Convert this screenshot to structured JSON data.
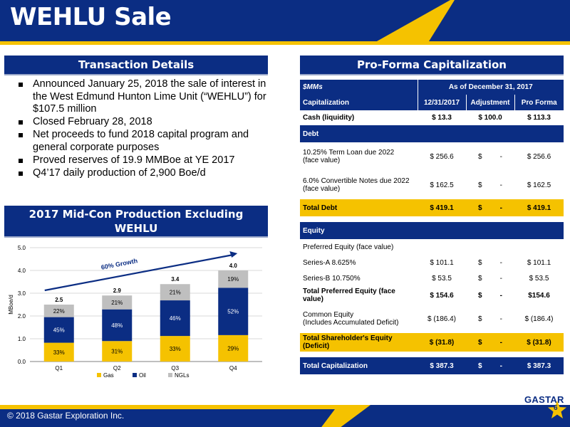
{
  "title": "WEHLU Sale",
  "transaction": {
    "header": "Transaction Details",
    "bullets": [
      "Announced January 25, 2018 the sale of interest in the West Edmund Hunton Lime Unit (“WEHLU”) for $107.5 million",
      "Closed February 28, 2018",
      "Net proceeds to fund 2018 capital program and general corporate purposes",
      "Proved reserves of 19.9 MMBoe at YE 2017",
      "Q4’17 daily production of 2,900 Boe/d"
    ]
  },
  "midcon": {
    "header_line1": "2017 Mid-Con Production Excluding",
    "header_line2": "WEHLU"
  },
  "chart_data": {
    "type": "bar",
    "stacked": true,
    "categories": [
      "Q1",
      "Q2",
      "Q3",
      "Q4"
    ],
    "totals": [
      "2.5",
      "2.9",
      "3.4",
      "4.0"
    ],
    "total_values": [
      2.5,
      2.9,
      3.4,
      4.0
    ],
    "series": [
      {
        "name": "Gas",
        "color": "#f5c200",
        "shares": [
          33,
          31,
          33,
          29
        ],
        "labels": [
          "33%",
          "31%",
          "33%",
          "29%"
        ]
      },
      {
        "name": "Oil",
        "color": "#0b2d83",
        "shares": [
          45,
          48,
          46,
          52
        ],
        "labels": [
          "45%",
          "48%",
          "46%",
          "52%"
        ]
      },
      {
        "name": "NGLs",
        "color": "#bfbfbf",
        "shares": [
          22,
          21,
          21,
          19
        ],
        "labels": [
          "22%",
          "21%",
          "21%",
          "19%"
        ]
      }
    ],
    "ylabel": "MBoe/d",
    "ylim": [
      0,
      5
    ],
    "yticks": [
      "0.0",
      "1.0",
      "2.0",
      "3.0",
      "4.0",
      "5.0"
    ],
    "ytick_values": [
      0,
      1,
      2,
      3,
      4,
      5
    ],
    "gridlines": true,
    "legend_position": "bottom",
    "annotation": "60% Growth"
  },
  "proforma": {
    "header": "Pro-Forma Capitalization",
    "units": "$MMs",
    "as_of": "As of December 31, 2017",
    "columns": [
      "Capitalization",
      "12/31/2017",
      "Adjustment",
      "Pro Forma"
    ],
    "cash": {
      "label": "Cash (liquidity)",
      "c1": "$ 13.3",
      "c2": "$ 100.0",
      "c3": "$ 113.3"
    },
    "debt_label": "Debt",
    "term_loan": {
      "line1": "10.25% Term Loan due 2022",
      "line2": "(face value)",
      "c1": "$ 256.6",
      "c2_sym": "$",
      "c2_val": "-",
      "c3": "$ 256.6"
    },
    "convertible": {
      "line1": "6.0% Convertible Notes due 2022",
      "line2": "(face value)",
      "c1": "$ 162.5",
      "c2_sym": "$",
      "c2_val": "-",
      "c3": "$ 162.5"
    },
    "total_debt": {
      "label": "Total Debt",
      "c1": "$ 419.1",
      "c2_sym": "$",
      "c2_val": "-",
      "c3": "$ 419.1"
    },
    "equity_label": "Equity",
    "preferred_label": "Preferred Equity (face value)",
    "series_a": {
      "label": "Series-A 8.625%",
      "c1": "$ 101.1",
      "c2_sym": "$",
      "c2_val": "-",
      "c3": "$ 101.1"
    },
    "series_b": {
      "label": "Series-B 10.750%",
      "c1": "$ 53.5",
      "c2_sym": "$",
      "c2_val": "-",
      "c3": "$ 53.5"
    },
    "total_preferred": {
      "label": "Total Preferred Equity (face value)",
      "c1": "$ 154.6",
      "c2_sym": "$",
      "c2_val": "-",
      "c3": "$154.6"
    },
    "common": {
      "line1": "Common Equity",
      "line2": "(Includes Accumulated Deficit)",
      "c1": "$ (186.4)",
      "c2_sym": "$",
      "c2_val": "-",
      "c3": "$ (186.4)"
    },
    "total_sh_equity": {
      "label": "Total Shareholder's Equity (Deficit)",
      "c1": "$ (31.8)",
      "c2_sym": "$",
      "c2_val": "-",
      "c3": "$ (31.8)"
    },
    "total_cap": {
      "label": "Total Capitalization",
      "c1": "$ 387.3",
      "c2_sym": "$",
      "c2_val": "-",
      "c3": "$ 387.3"
    }
  },
  "footer": {
    "copyright": "© 2018 Gastar Exploration Inc.",
    "logo_text": "GASTAR",
    "page_number": "6"
  },
  "colors": {
    "navy": "#0b2d83",
    "gold": "#f5c200",
    "grey": "#bfbfbf"
  }
}
